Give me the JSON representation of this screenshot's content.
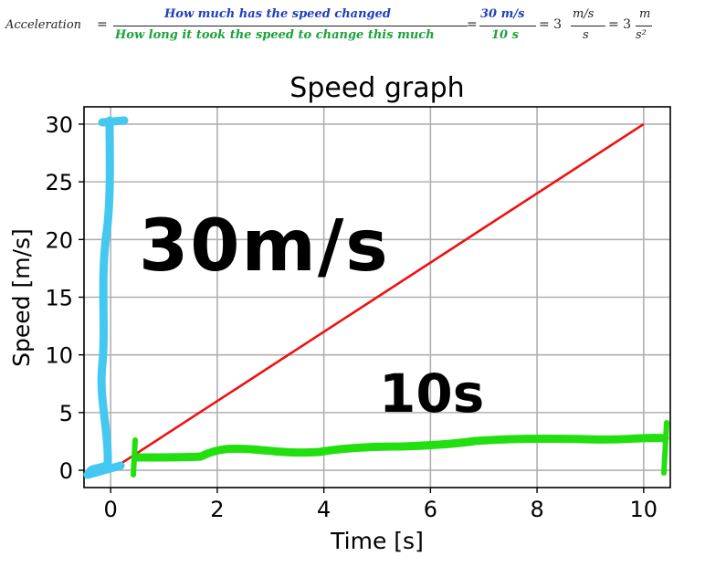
{
  "formula": {
    "lhs": "Acceleration",
    "eq1": "=",
    "numerator_text": "How much has the speed changed",
    "denominator_text": "How long it took the speed to change this much",
    "eq2": "=",
    "numerator_value": "30 m/s",
    "denominator_value": "10 s",
    "eq3": "= 3",
    "unit_num": "m/s",
    "unit_den": "s",
    "eq4": "= 3",
    "final_num": "m",
    "final_den": "s²",
    "colors": {
      "numerator": "#1f3fbf",
      "denominator": "#1aa33a",
      "text": "#222222"
    }
  },
  "chart_data": {
    "type": "line",
    "title": "Speed graph",
    "xlabel": "Time [s]",
    "ylabel": "Speed [m/s]",
    "xlim": [
      -0.5,
      10.5
    ],
    "ylim": [
      -1.5,
      31.5
    ],
    "xticks": [
      0,
      2,
      4,
      6,
      8,
      10
    ],
    "yticks": [
      0,
      5,
      10,
      15,
      20,
      25,
      30
    ],
    "grid": true,
    "series": [
      {
        "x": [
          0,
          10
        ],
        "y": [
          0,
          30
        ],
        "color": "#ee1111"
      }
    ],
    "annotations": {
      "speed_label": "30m/s",
      "time_label": "10s",
      "speed_color": "#44c8f0",
      "time_color": "#22e010"
    }
  }
}
